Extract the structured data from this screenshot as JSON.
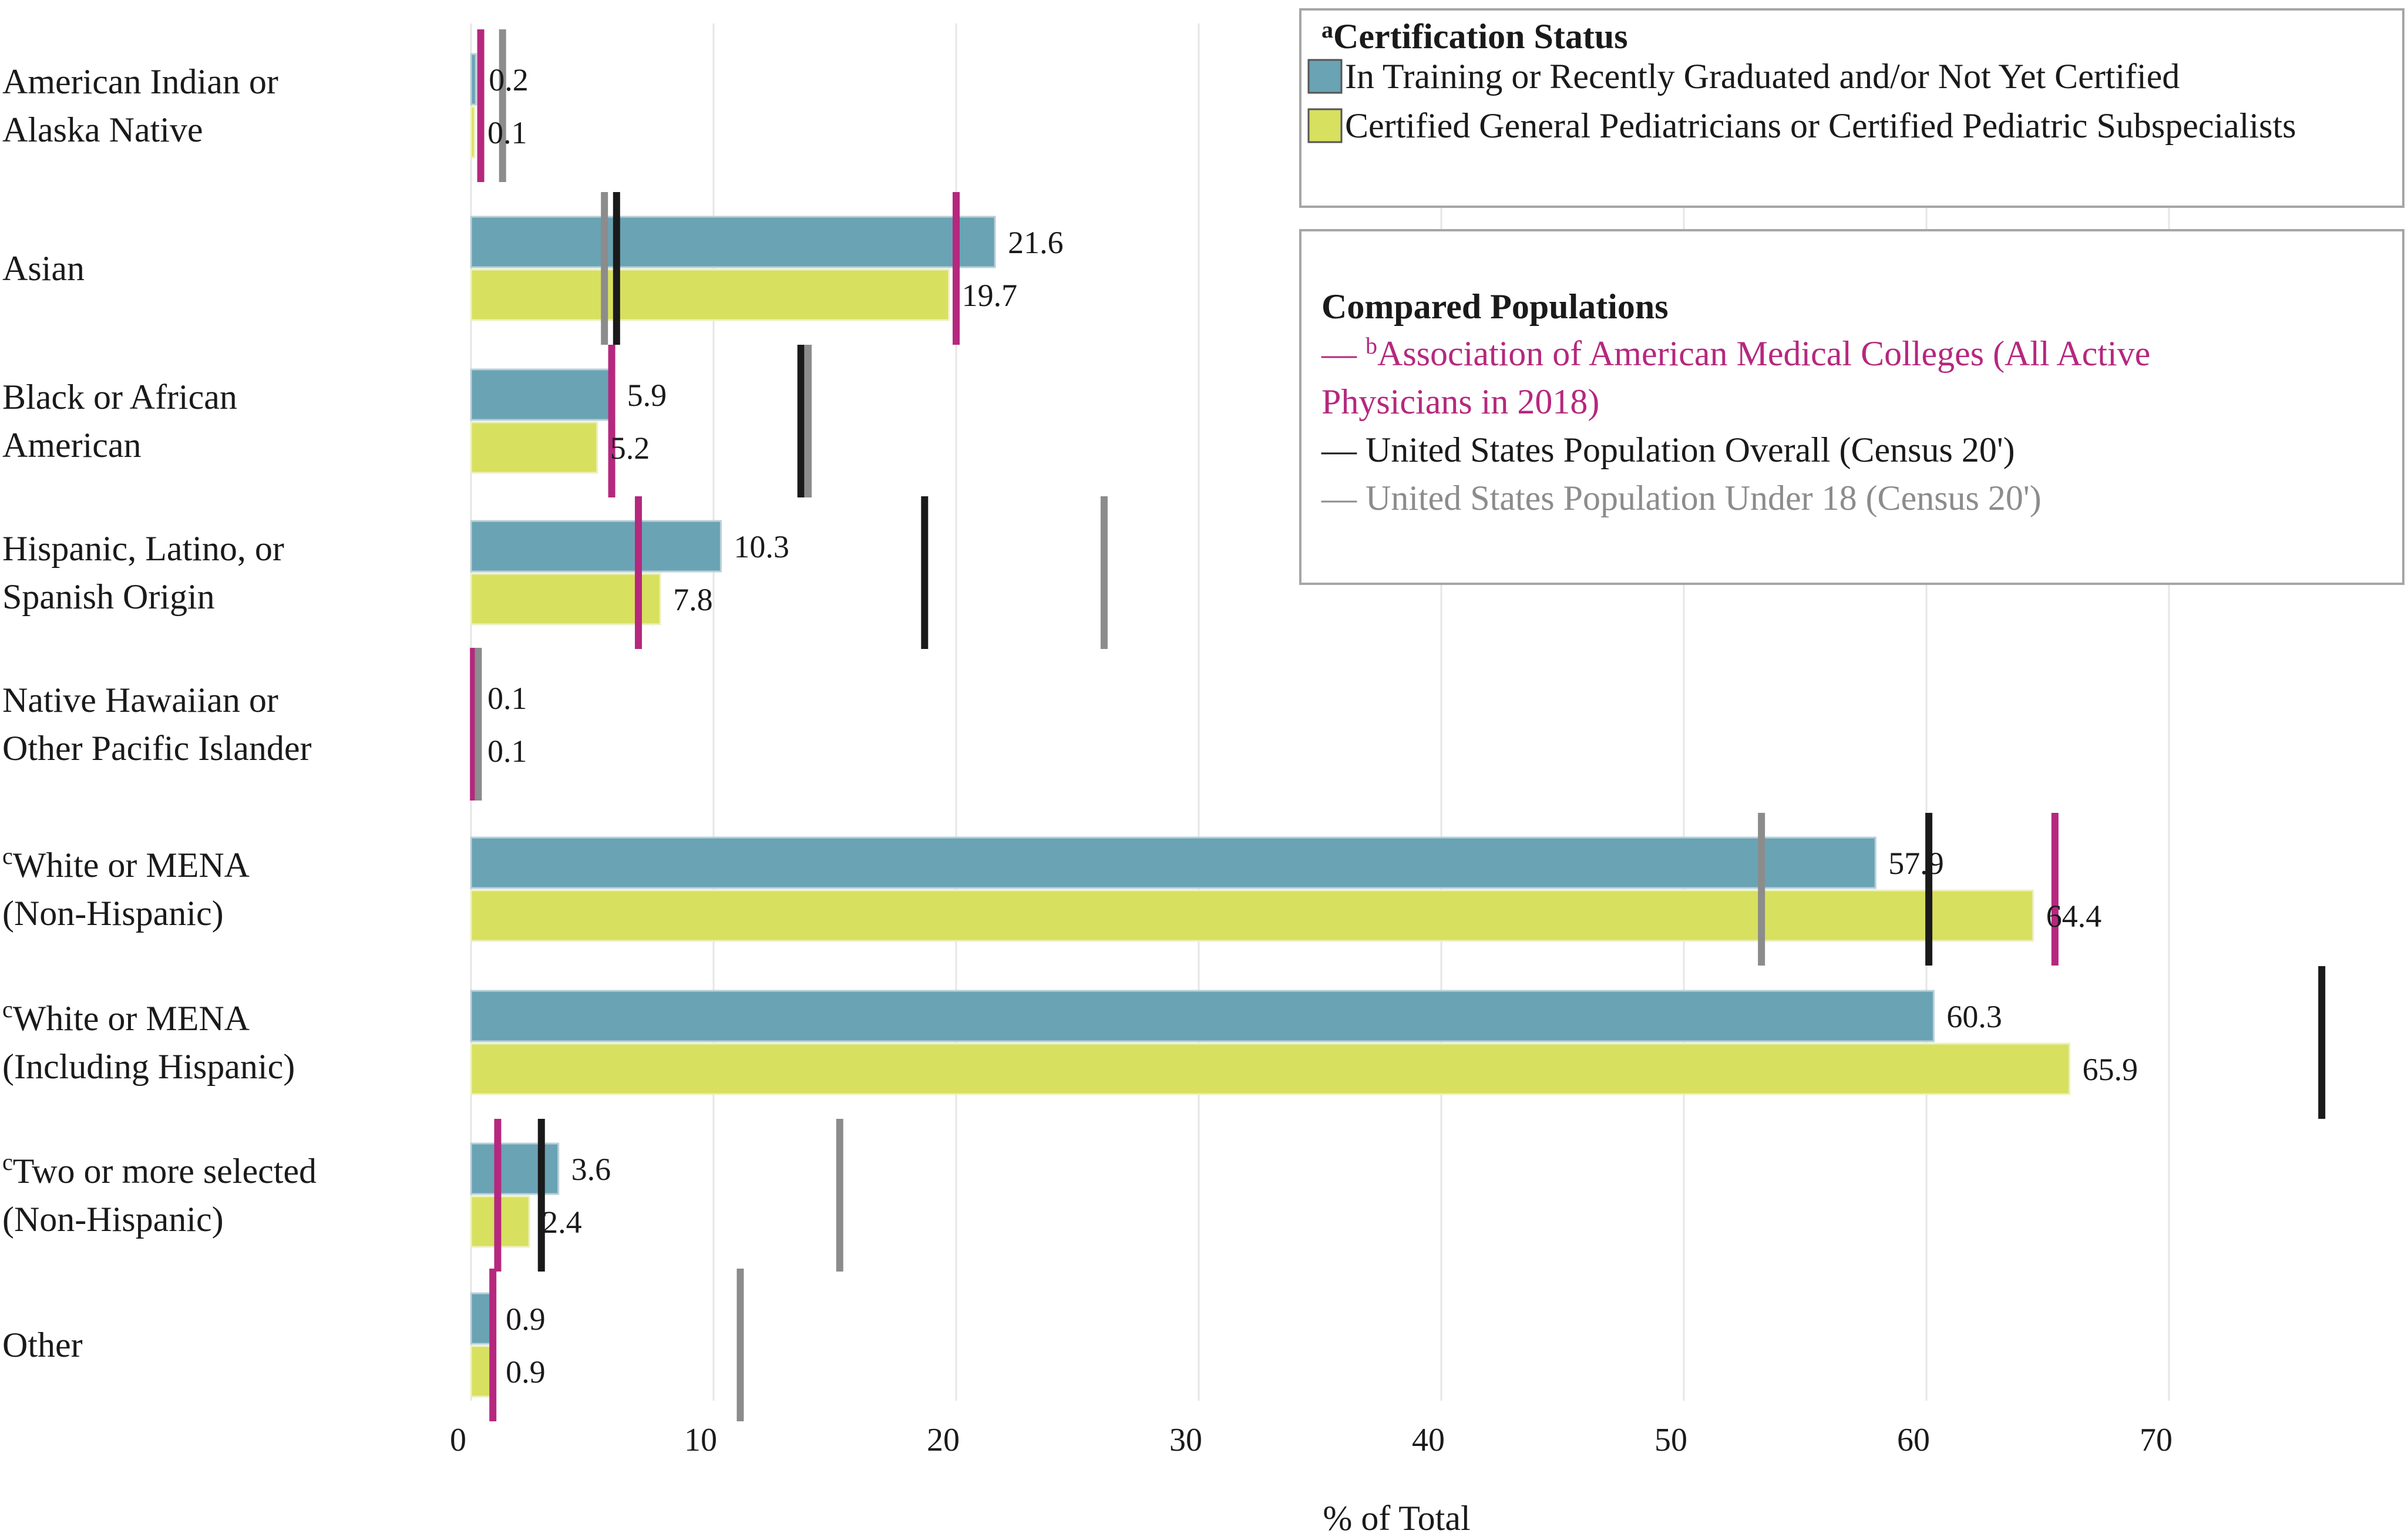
{
  "chart_data": {
    "type": "bar",
    "orientation": "horizontal",
    "categories": [
      [
        "American Indian or",
        "Alaska Native"
      ],
      [
        "Asian"
      ],
      [
        "Black or African",
        "American"
      ],
      [
        "Hispanic, Latino, or",
        "Spanish Origin"
      ],
      [
        "Native Hawaiian or",
        "Other Pacific Islander"
      ],
      [
        "White or MENA",
        "(Non-Hispanic)"
      ],
      [
        "White or MENA",
        "(Including Hispanic)"
      ],
      [
        "Two or more selected",
        "(Non-Hispanic)"
      ],
      [
        "Other"
      ]
    ],
    "category_superscripts": [
      "",
      "",
      "",
      "",
      "",
      "c",
      "c",
      "c",
      ""
    ],
    "series": [
      {
        "name": "In Training or Recently Graduated and/or Not Yet Certified",
        "color": "#6aa3b4",
        "values": [
          0.2,
          21.6,
          5.9,
          10.3,
          0.1,
          57.9,
          60.3,
          3.6,
          0.9
        ],
        "labels": [
          "0.2",
          "21.6",
          "5.9",
          "10.3",
          "0.1",
          "57.9",
          "60.3",
          "3.6",
          "0.9"
        ]
      },
      {
        "name": "Certified General Pediatricians or Certified Pediatric Subspecialists",
        "color": "#d8e05f",
        "values": [
          0.1,
          19.7,
          5.2,
          7.8,
          0.1,
          64.4,
          65.9,
          2.4,
          0.9
        ],
        "labels": [
          "0.1",
          "19.7",
          "5.2",
          "7.8",
          "0.1",
          "64.4",
          "65.9",
          "2.4",
          "0.9"
        ]
      }
    ],
    "reference_series": [
      {
        "name": "Association of American Medical Colleges (All Active Physicians in 2018)",
        "color": "#b5287e",
        "values": [
          0.4,
          20,
          5.8,
          6.9,
          0.1,
          65.3,
          null,
          1.1,
          0.9
        ]
      },
      {
        "name": "United States Population Overall (Census 20')",
        "color": "#1a1a1a",
        "values": [
          null,
          6.0,
          13.6,
          18.7,
          null,
          60.1,
          76.3,
          2.9,
          null
        ]
      },
      {
        "name": "United States Population Under 18 (Census 20')",
        "color": "#8c8c8c",
        "values": [
          1.3,
          5.5,
          13.9,
          26.1,
          0.3,
          53.2,
          null,
          15.2,
          11.1
        ]
      }
    ],
    "xlabel": "% of Total",
    "xlim": [
      0,
      78
    ],
    "xticks": [
      0,
      10,
      20,
      30,
      40,
      50,
      60,
      70
    ],
    "grid": "vertical",
    "legend": {
      "placement": "top-right",
      "certification": {
        "title_superscript": "a",
        "title": "Certification Status",
        "items": [
          "In Training or Recently Graduated and/or Not Yet Certified",
          "Certified General Pediatricians or Certified Pediatric Subspecialists"
        ]
      },
      "compared": {
        "title": "Compared Populations",
        "items": [
          {
            "dash": "—",
            "superscript": "b",
            "lines": [
              "Association of American Medical Colleges (All Active",
              "Physicians in 2018)"
            ],
            "color": "#b5287e"
          },
          {
            "dash": "—",
            "superscript": "",
            "lines": [
              "United States Population Overall (Census 20')"
            ],
            "color": "#1a1a1a"
          },
          {
            "dash": "—",
            "superscript": "",
            "lines": [
              "United States Population Under 18 (Census 20')"
            ],
            "color": "#8c8c8c"
          }
        ]
      }
    }
  }
}
